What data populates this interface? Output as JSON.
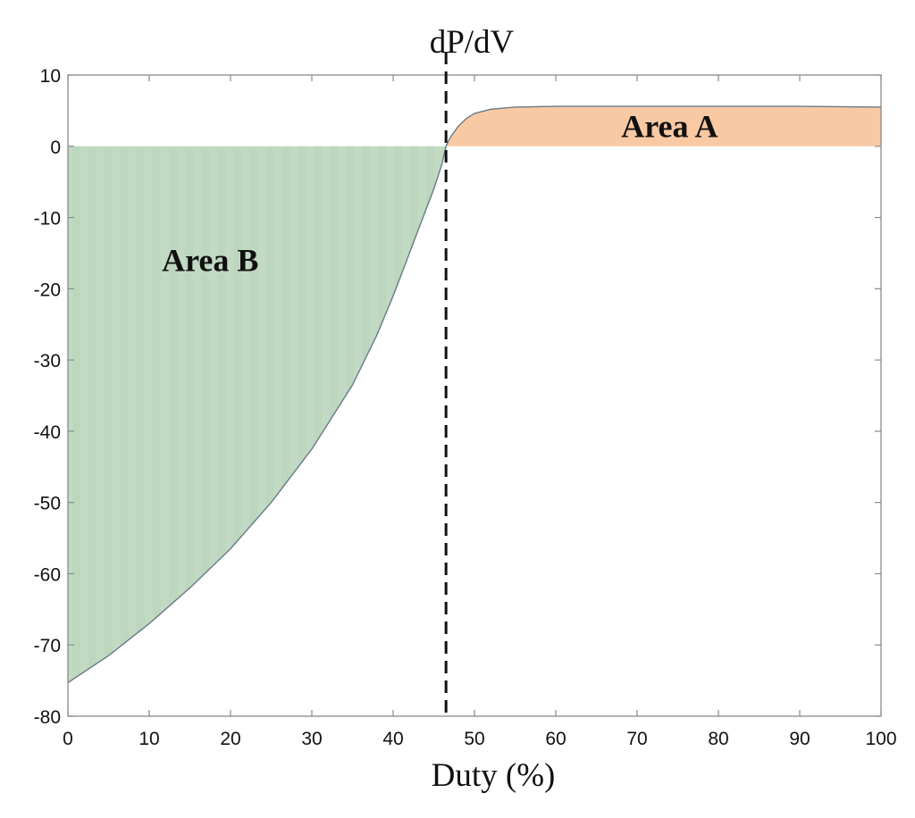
{
  "chart_data": {
    "type": "area",
    "title": "dP/dV",
    "xlabel": "Duty (%)",
    "ylabel": "",
    "xlim": [
      0,
      100
    ],
    "ylim": [
      -80,
      10
    ],
    "x_ticks": [
      0,
      10,
      20,
      30,
      40,
      50,
      60,
      70,
      80,
      90,
      100
    ],
    "y_ticks": [
      10,
      0,
      -10,
      -20,
      -30,
      -40,
      -50,
      -60,
      -70,
      -80
    ],
    "grid": false,
    "series": [
      {
        "values": [
          [
            0,
            -75.3
          ],
          [
            5,
            -71.5
          ],
          [
            10,
            -67.0
          ],
          [
            15,
            -62.0
          ],
          [
            20,
            -56.5
          ],
          [
            25,
            -50.0
          ],
          [
            30,
            -42.5
          ],
          [
            35,
            -33.5
          ],
          [
            38,
            -26.5
          ],
          [
            40,
            -21.0
          ],
          [
            42,
            -15.0
          ],
          [
            44,
            -9.0
          ],
          [
            45,
            -6.0
          ],
          [
            46,
            -2.5
          ],
          [
            46.5,
            0
          ],
          [
            47,
            1.2
          ],
          [
            48,
            2.8
          ],
          [
            49,
            3.9
          ],
          [
            50,
            4.6
          ],
          [
            52,
            5.2
          ],
          [
            55,
            5.5
          ],
          [
            60,
            5.6
          ],
          [
            70,
            5.6
          ],
          [
            80,
            5.6
          ],
          [
            90,
            5.6
          ],
          [
            100,
            5.5
          ]
        ]
      }
    ],
    "crossover_x": 46.5,
    "regions": [
      {
        "label": "Area A",
        "label_at": [
          74,
          2.8
        ],
        "fill": "#f9c9a4"
      },
      {
        "label": "Area B",
        "label_at": [
          17.5,
          -16
        ],
        "fill": "#bdd7be"
      }
    ],
    "curve_color": "#6a7a86",
    "divider_color": "#111111"
  }
}
